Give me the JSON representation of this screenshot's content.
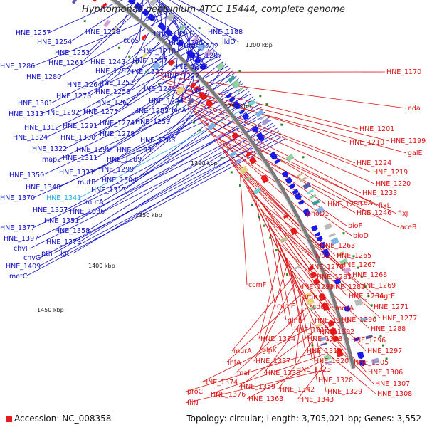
{
  "title": "Hyphomonas neptunium ATCC 15444, complete genome",
  "footer": {
    "accession": "Accession: NC_008358",
    "summary": "Topology: circular; Length: 3,705,021 bp; Genes: 3,552"
  },
  "colors": {
    "forward_label": "#1010c8",
    "reverse_label": "#e01010",
    "highlight_label": "#20b0e0",
    "forward_arrow": "#1a1ae6",
    "reverse_arrow": "#e61a1a",
    "backbone": "#7a7a7a"
  },
  "scale_ticks": [
    "1200 kbp",
    "1250 kbp",
    "1300 kbp",
    "1350 kbp",
    "1400 kbp",
    "1450 kbp"
  ],
  "forward_genes": [
    "HNE_1188",
    "lldD",
    "HNE_1203",
    "HNE_1202",
    "HNE_1211",
    "HNE_1207",
    "HNE_1218",
    "HNE_1226",
    "ccoS",
    "HNE_1257",
    "HNE_1254",
    "HNE_1253",
    "HNE_1261",
    "HNE_1245",
    "HNE_1227",
    "HNE_1216",
    "HNE_1252",
    "HNE_1237",
    "HNE_1222",
    "HNE_1286",
    "HNE_1280",
    "HNE_1251",
    "HNE_1264",
    "HNE_1241",
    "ccoN",
    "HNE_1276",
    "HNE_1256",
    "HNE_1244",
    "HNE_1301",
    "HNE_1262",
    "HNE_1255",
    "bioA",
    "HNE_1313",
    "HNE_1292",
    "HNE_1275",
    "HNE_1259",
    "HNE_1312",
    "HNE_1291",
    "HNE_1274",
    "HNE_1324",
    "HNE_1300",
    "HNE_1278",
    "HNE_1266",
    "HNE_1322",
    "HNE_1298",
    "HNE_1283",
    "map2",
    "HNE_1311",
    "HNE_1289",
    "HNE_1299",
    "HNE_1350",
    "HNE_1321",
    "mutB",
    "HNE_1304",
    "HNE_1348",
    "HNE_1315",
    "HNE_1370",
    "HNE_1341",
    "mutA",
    "HNE_1357",
    "HNE_1336",
    "HNE_1351",
    "HNE_1377",
    "HNE_1358",
    "HNE_1397",
    "HNE_1373",
    "chvI",
    "pth",
    "lgt",
    "chvG",
    "HNE_1409",
    "metC"
  ],
  "highlight_gene": "HNE_1341",
  "reverse_genes": [
    "HNE_1170",
    "eda",
    "HNE_1201",
    "HNE_1210",
    "HNE_1199",
    "galE",
    "HNE_1224",
    "HNE_1219",
    "HNE_1220",
    "HNE_1233",
    "aceA",
    "fixL",
    "HNE_1250",
    "HNE_1246",
    "fixJ",
    "phoD1",
    "bioF",
    "aceB",
    "bioD",
    "HNE_1263",
    "HNE_1265",
    "ivd2",
    "HNE_1267",
    "HNE_1279",
    "HNE_1268",
    "HNE_1281",
    "HNE_1269",
    "ccmF",
    "HNE_1293",
    "HNE_1282",
    "amn",
    "HNE_1284",
    "mgtE",
    "ccmE",
    "cdd",
    "mccA",
    "HNE_1271",
    "HNE_1277",
    "glnE",
    "HNE_1303",
    "HNE_1290",
    "HNE_1317",
    "HNE_1302",
    "HNE_1288",
    "HNE_1334",
    "HNE_1318",
    "HNE_1296",
    "glpK",
    "HNE_1319",
    "HNE_1297",
    "murA",
    "HNE_1337",
    "HNE_1320",
    "HNE_1305",
    "infA",
    "HNE_1323",
    "HNE_1306",
    "maf",
    "HNE_1338",
    "HNE_1328",
    "HNE_1307",
    "HNE_1374",
    "HNE_1359",
    "HNE_1342",
    "HNE_1329",
    "HNE_1308",
    "proC",
    "HNE_1376",
    "HNE_1363",
    "HNE_1343",
    "fliN"
  ]
}
